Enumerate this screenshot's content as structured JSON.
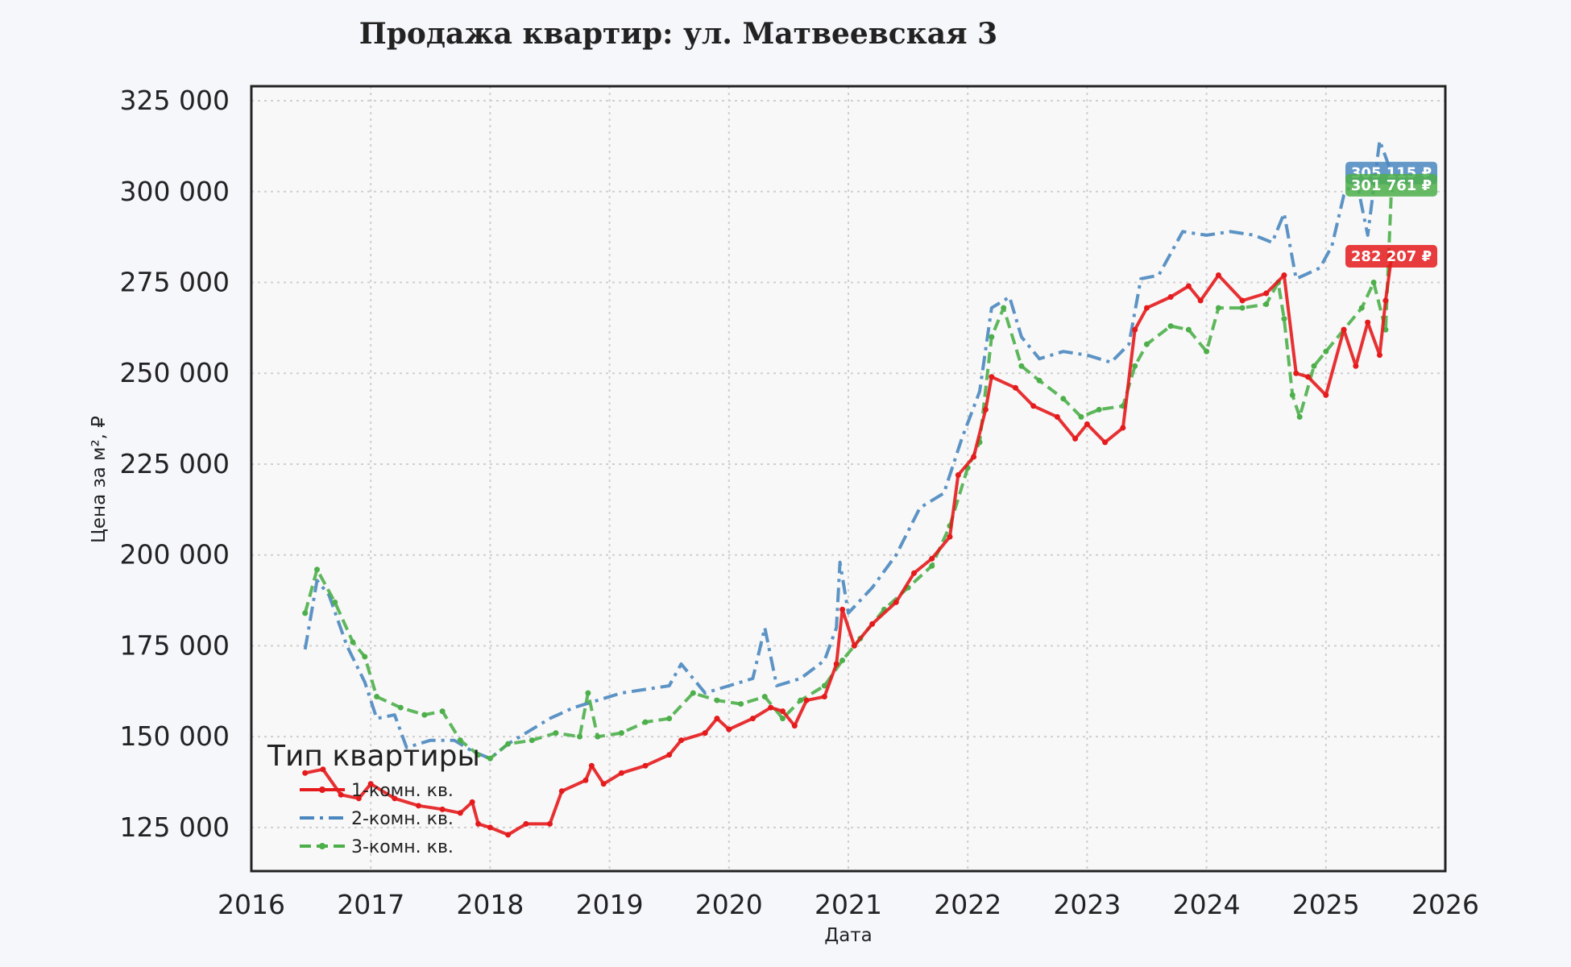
{
  "chart_data": {
    "type": "line",
    "title": "Продажа квартир: ул. Матвеевская 3",
    "xlabel": "Дата",
    "ylabel": "Цена за м², ₽",
    "x_ticks": [
      "2016",
      "2017",
      "2018",
      "2019",
      "2020",
      "2021",
      "2022",
      "2023",
      "2024",
      "2025",
      "2026"
    ],
    "y_ticks": [
      "125 000",
      "150 000",
      "175 000",
      "200 000",
      "225 000",
      "250 000",
      "275 000",
      "300 000",
      "325 000"
    ],
    "xlim": [
      2016.0,
      2026.0
    ],
    "ylim": [
      113000,
      329000
    ],
    "grid": true,
    "legend": {
      "title": "Тип квартиры",
      "placement": "lower-left",
      "entries": [
        "1-комн. кв.",
        "2-комн. кв.",
        "3-комн. кв."
      ]
    },
    "series": [
      {
        "name": "1-комн. кв.",
        "color": "#e41a1c",
        "style": "solid",
        "marker": "dot",
        "last_value_label": "282 207 ₽",
        "points": [
          [
            2016.45,
            140000
          ],
          [
            2016.6,
            141000
          ],
          [
            2016.75,
            134000
          ],
          [
            2016.9,
            133000
          ],
          [
            2017.0,
            137000
          ],
          [
            2017.2,
            133000
          ],
          [
            2017.4,
            131000
          ],
          [
            2017.6,
            130000
          ],
          [
            2017.75,
            129000
          ],
          [
            2017.85,
            132000
          ],
          [
            2017.9,
            126000
          ],
          [
            2018.0,
            125000
          ],
          [
            2018.15,
            123000
          ],
          [
            2018.3,
            126000
          ],
          [
            2018.5,
            126000
          ],
          [
            2018.6,
            135000
          ],
          [
            2018.8,
            138000
          ],
          [
            2018.85,
            142000
          ],
          [
            2018.95,
            137000
          ],
          [
            2019.1,
            140000
          ],
          [
            2019.3,
            142000
          ],
          [
            2019.5,
            145000
          ],
          [
            2019.6,
            149000
          ],
          [
            2019.8,
            151000
          ],
          [
            2019.9,
            155000
          ],
          [
            2020.0,
            152000
          ],
          [
            2020.2,
            155000
          ],
          [
            2020.35,
            158000
          ],
          [
            2020.45,
            157000
          ],
          [
            2020.55,
            153000
          ],
          [
            2020.65,
            160000
          ],
          [
            2020.8,
            161000
          ],
          [
            2020.9,
            170000
          ],
          [
            2020.95,
            185000
          ],
          [
            2021.05,
            175000
          ],
          [
            2021.2,
            181000
          ],
          [
            2021.4,
            187000
          ],
          [
            2021.55,
            195000
          ],
          [
            2021.7,
            199000
          ],
          [
            2021.85,
            205000
          ],
          [
            2021.92,
            222000
          ],
          [
            2022.05,
            227000
          ],
          [
            2022.15,
            240000
          ],
          [
            2022.2,
            249000
          ],
          [
            2022.4,
            246000
          ],
          [
            2022.55,
            241000
          ],
          [
            2022.75,
            238000
          ],
          [
            2022.9,
            232000
          ],
          [
            2023.0,
            236000
          ],
          [
            2023.15,
            231000
          ],
          [
            2023.3,
            235000
          ],
          [
            2023.4,
            262000
          ],
          [
            2023.5,
            268000
          ],
          [
            2023.7,
            271000
          ],
          [
            2023.85,
            274000
          ],
          [
            2023.95,
            270000
          ],
          [
            2024.1,
            277000
          ],
          [
            2024.3,
            270000
          ],
          [
            2024.5,
            272000
          ],
          [
            2024.65,
            277000
          ],
          [
            2024.75,
            250000
          ],
          [
            2024.85,
            249000
          ],
          [
            2025.0,
            244000
          ],
          [
            2025.15,
            262000
          ],
          [
            2025.25,
            252000
          ],
          [
            2025.35,
            264000
          ],
          [
            2025.45,
            255000
          ],
          [
            2025.5,
            270000
          ],
          [
            2025.55,
            282207
          ]
        ]
      },
      {
        "name": "2-комн. кв.",
        "color": "#4a87bf",
        "style": "dashdot",
        "marker": "none",
        "last_value_label": "305 115 ₽",
        "points": [
          [
            2016.45,
            174000
          ],
          [
            2016.55,
            193000
          ],
          [
            2016.65,
            189000
          ],
          [
            2016.8,
            175000
          ],
          [
            2016.95,
            165000
          ],
          [
            2017.05,
            155000
          ],
          [
            2017.2,
            156000
          ],
          [
            2017.3,
            147000
          ],
          [
            2017.5,
            149000
          ],
          [
            2017.7,
            149000
          ],
          [
            2017.85,
            146000
          ],
          [
            2018.0,
            144000
          ],
          [
            2018.15,
            148000
          ],
          [
            2018.3,
            151000
          ],
          [
            2018.5,
            155000
          ],
          [
            2018.7,
            158000
          ],
          [
            2018.9,
            160000
          ],
          [
            2019.1,
            162000
          ],
          [
            2019.3,
            163000
          ],
          [
            2019.5,
            164000
          ],
          [
            2019.6,
            170000
          ],
          [
            2019.8,
            162000
          ],
          [
            2020.0,
            164000
          ],
          [
            2020.2,
            166000
          ],
          [
            2020.3,
            180000
          ],
          [
            2020.4,
            164000
          ],
          [
            2020.6,
            166000
          ],
          [
            2020.8,
            171000
          ],
          [
            2020.9,
            180000
          ],
          [
            2020.93,
            198000
          ],
          [
            2021.0,
            184000
          ],
          [
            2021.2,
            191000
          ],
          [
            2021.4,
            200000
          ],
          [
            2021.6,
            213000
          ],
          [
            2021.8,
            217000
          ],
          [
            2021.95,
            232000
          ],
          [
            2022.1,
            245000
          ],
          [
            2022.2,
            268000
          ],
          [
            2022.35,
            271000
          ],
          [
            2022.45,
            260000
          ],
          [
            2022.6,
            254000
          ],
          [
            2022.8,
            256000
          ],
          [
            2023.0,
            255000
          ],
          [
            2023.2,
            253000
          ],
          [
            2023.35,
            258000
          ],
          [
            2023.45,
            276000
          ],
          [
            2023.6,
            277000
          ],
          [
            2023.8,
            289000
          ],
          [
            2024.0,
            288000
          ],
          [
            2024.2,
            289000
          ],
          [
            2024.4,
            288000
          ],
          [
            2024.55,
            286000
          ],
          [
            2024.65,
            294000
          ],
          [
            2024.75,
            276000
          ],
          [
            2024.95,
            279000
          ],
          [
            2025.05,
            285000
          ],
          [
            2025.15,
            299000
          ],
          [
            2025.25,
            304000
          ],
          [
            2025.35,
            288000
          ],
          [
            2025.45,
            314000
          ],
          [
            2025.55,
            305115
          ]
        ]
      },
      {
        "name": "3-комн. кв.",
        "color": "#4daf4a",
        "style": "dashed",
        "marker": "dot",
        "last_value_label": "301 761 ₽",
        "points": [
          [
            2016.45,
            184000
          ],
          [
            2016.55,
            196000
          ],
          [
            2016.7,
            187000
          ],
          [
            2016.85,
            176000
          ],
          [
            2016.95,
            172000
          ],
          [
            2017.05,
            161000
          ],
          [
            2017.25,
            158000
          ],
          [
            2017.45,
            156000
          ],
          [
            2017.6,
            157000
          ],
          [
            2017.75,
            149000
          ],
          [
            2017.9,
            145000
          ],
          [
            2018.0,
            144000
          ],
          [
            2018.15,
            148000
          ],
          [
            2018.35,
            149000
          ],
          [
            2018.55,
            151000
          ],
          [
            2018.75,
            150000
          ],
          [
            2018.82,
            162000
          ],
          [
            2018.9,
            150000
          ],
          [
            2019.1,
            151000
          ],
          [
            2019.3,
            154000
          ],
          [
            2019.5,
            155000
          ],
          [
            2019.7,
            162000
          ],
          [
            2019.9,
            160000
          ],
          [
            2020.1,
            159000
          ],
          [
            2020.3,
            161000
          ],
          [
            2020.45,
            155000
          ],
          [
            2020.6,
            160000
          ],
          [
            2020.8,
            164000
          ],
          [
            2020.95,
            171000
          ],
          [
            2021.1,
            177000
          ],
          [
            2021.3,
            185000
          ],
          [
            2021.5,
            191000
          ],
          [
            2021.7,
            197000
          ],
          [
            2021.85,
            208000
          ],
          [
            2022.0,
            224000
          ],
          [
            2022.1,
            231000
          ],
          [
            2022.2,
            260000
          ],
          [
            2022.3,
            268000
          ],
          [
            2022.45,
            252000
          ],
          [
            2022.6,
            248000
          ],
          [
            2022.8,
            243000
          ],
          [
            2022.95,
            238000
          ],
          [
            2023.1,
            240000
          ],
          [
            2023.3,
            241000
          ],
          [
            2023.4,
            252000
          ],
          [
            2023.5,
            258000
          ],
          [
            2023.7,
            263000
          ],
          [
            2023.85,
            262000
          ],
          [
            2024.0,
            256000
          ],
          [
            2024.1,
            268000
          ],
          [
            2024.3,
            268000
          ],
          [
            2024.5,
            269000
          ],
          [
            2024.6,
            275000
          ],
          [
            2024.65,
            265000
          ],
          [
            2024.72,
            244000
          ],
          [
            2024.78,
            238000
          ],
          [
            2024.9,
            252000
          ],
          [
            2025.0,
            256000
          ],
          [
            2025.15,
            262000
          ],
          [
            2025.3,
            268000
          ],
          [
            2025.4,
            275000
          ],
          [
            2025.5,
            262000
          ],
          [
            2025.55,
            301761
          ]
        ]
      }
    ]
  }
}
